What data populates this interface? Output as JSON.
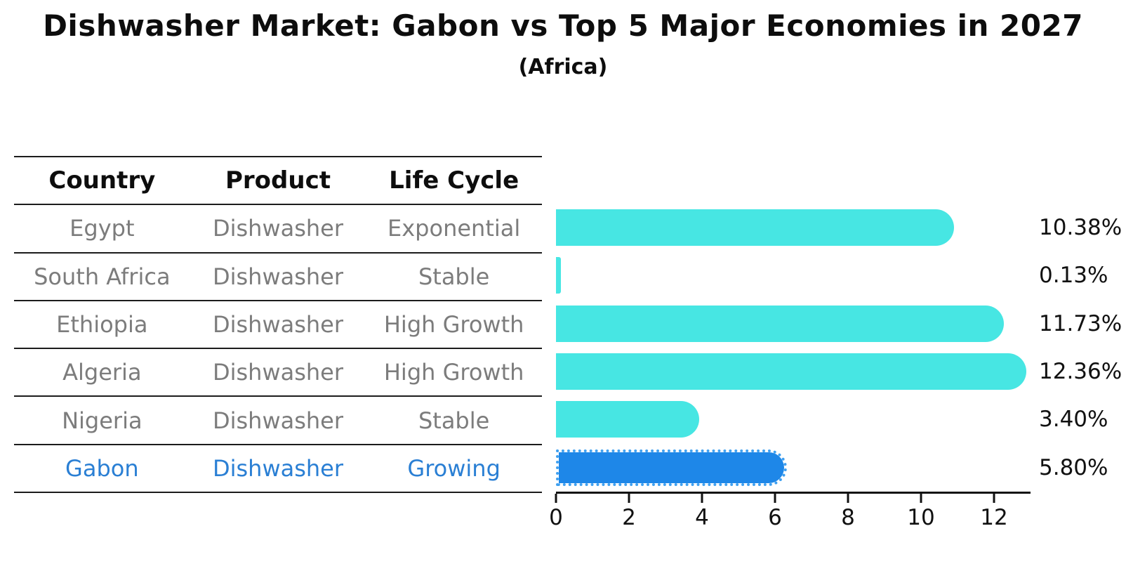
{
  "title": "Dishwasher Market: Gabon vs Top 5 Major Economies in 2027",
  "subtitle": "(Africa)",
  "colors": {
    "bar_default": "#47E6E3",
    "bar_highlight": "#1E87E8",
    "highlight_text": "#2a7fd4",
    "table_text": "#7c7c7c",
    "heading_text": "#0d0d0d"
  },
  "table": {
    "headers": [
      "Country",
      "Product",
      "Life Cycle"
    ]
  },
  "chart_data": {
    "type": "bar",
    "orientation": "horizontal",
    "title": "Dishwasher Market: Gabon vs Top 5 Major Economies in 2027",
    "subtitle": "(Africa)",
    "categories": [
      "Egypt",
      "South Africa",
      "Ethiopia",
      "Algeria",
      "Nigeria",
      "Gabon"
    ],
    "values": [
      10.38,
      0.13,
      11.73,
      12.36,
      3.4,
      5.8
    ],
    "value_labels": [
      "10.38%",
      "0.13%",
      "11.73%",
      "12.36%",
      "3.40%",
      "5.80%"
    ],
    "xlabel": "",
    "ylabel": "",
    "xticks": [
      0,
      2,
      4,
      6,
      8,
      10,
      12
    ],
    "xlim": [
      0,
      13
    ],
    "grid": false,
    "legend": false,
    "rows": [
      {
        "country": "Egypt",
        "product": "Dishwasher",
        "life_cycle": "Exponential",
        "value": 10.38,
        "label": "10.38%",
        "highlight": false
      },
      {
        "country": "South Africa",
        "product": "Dishwasher",
        "life_cycle": "Stable",
        "value": 0.13,
        "label": "0.13%",
        "highlight": false
      },
      {
        "country": "Ethiopia",
        "product": "Dishwasher",
        "life_cycle": "High Growth",
        "value": 11.73,
        "label": "11.73%",
        "highlight": false
      },
      {
        "country": "Algeria",
        "product": "Dishwasher",
        "life_cycle": "High Growth",
        "value": 12.36,
        "label": "12.36%",
        "highlight": false
      },
      {
        "country": "Nigeria",
        "product": "Dishwasher",
        "life_cycle": "Stable",
        "value": 3.4,
        "label": "3.40%",
        "highlight": false
      },
      {
        "country": "Gabon",
        "product": "Dishwasher",
        "life_cycle": "Growing",
        "value": 5.8,
        "label": "5.80%",
        "highlight": true
      }
    ]
  }
}
